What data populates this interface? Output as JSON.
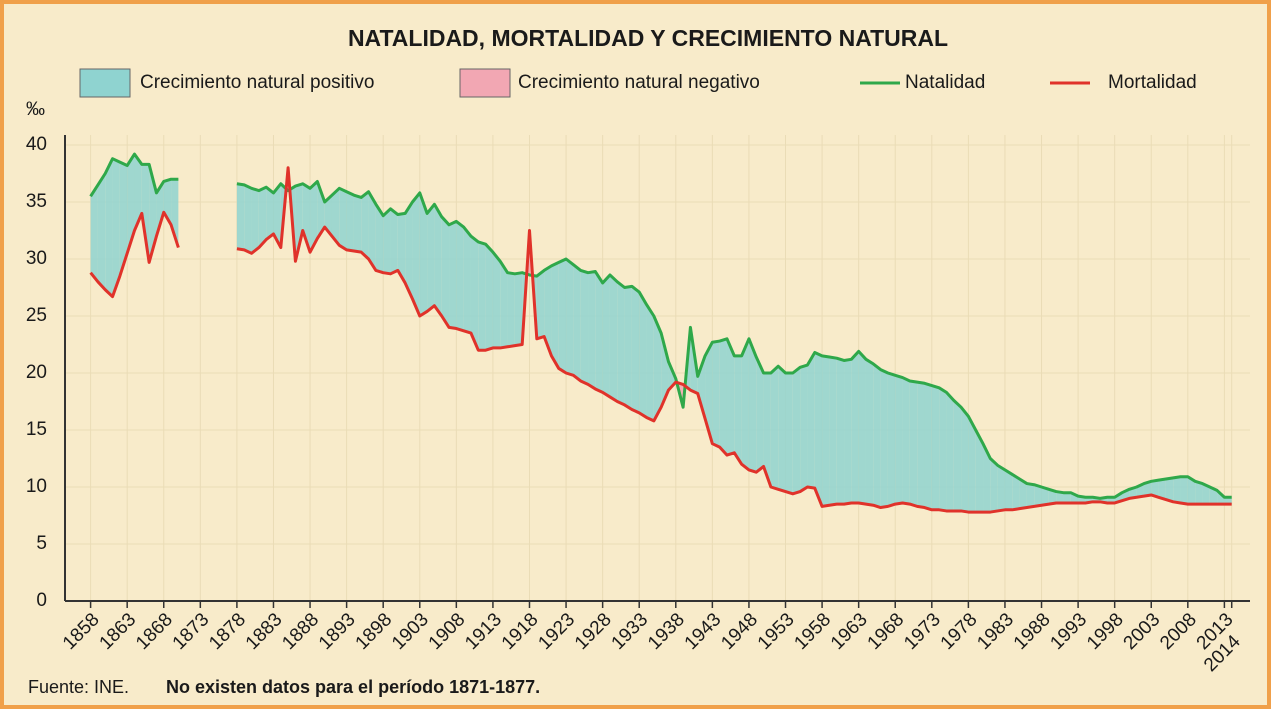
{
  "chart_data": {
    "type": "line",
    "title": "NATALIDAD, MORTALIDAD Y CRECIMIENTO NATURAL",
    "y_label": "‰",
    "source": "Fuente: INE.",
    "note": "No existen datos para el período 1871-1877.",
    "fills": [
      {
        "name": "Crecimiento natural positivo",
        "color": "#8fd3d0"
      },
      {
        "name": "Crecimiento natural negativo",
        "color": "#f2a7b3"
      }
    ],
    "x": [
      1858,
      1859,
      1860,
      1861,
      1862,
      1863,
      1864,
      1865,
      1866,
      1867,
      1868,
      1869,
      1870,
      1871,
      1872,
      1873,
      1874,
      1875,
      1876,
      1877,
      1878,
      1879,
      1880,
      1881,
      1882,
      1883,
      1884,
      1885,
      1886,
      1887,
      1888,
      1889,
      1890,
      1891,
      1892,
      1893,
      1894,
      1895,
      1896,
      1897,
      1898,
      1899,
      1900,
      1901,
      1902,
      1903,
      1904,
      1905,
      1906,
      1907,
      1908,
      1909,
      1910,
      1911,
      1912,
      1913,
      1914,
      1915,
      1916,
      1917,
      1918,
      1919,
      1920,
      1921,
      1922,
      1923,
      1924,
      1925,
      1926,
      1927,
      1928,
      1929,
      1930,
      1931,
      1932,
      1933,
      1934,
      1935,
      1936,
      1937,
      1938,
      1939,
      1940,
      1941,
      1942,
      1943,
      1944,
      1945,
      1946,
      1947,
      1948,
      1949,
      1950,
      1951,
      1952,
      1953,
      1954,
      1955,
      1956,
      1957,
      1958,
      1959,
      1960,
      1961,
      1962,
      1963,
      1964,
      1965,
      1966,
      1967,
      1968,
      1969,
      1970,
      1971,
      1972,
      1973,
      1974,
      1975,
      1976,
      1977,
      1978,
      1979,
      1980,
      1981,
      1982,
      1983,
      1984,
      1985,
      1986,
      1987,
      1988,
      1989,
      1990,
      1991,
      1992,
      1993,
      1994,
      1995,
      1996,
      1997,
      1998,
      1999,
      2000,
      2001,
      2002,
      2003,
      2004,
      2005,
      2006,
      2007,
      2008,
      2009,
      2010,
      2011,
      2012,
      2013,
      2014
    ],
    "series": [
      {
        "name": "Natalidad",
        "color": "#2fa84a",
        "values": [
          35.5,
          36.5,
          37.5,
          38.8,
          38.5,
          38.2,
          39.2,
          38.3,
          38.3,
          35.8,
          36.8,
          37.0,
          37.0,
          null,
          null,
          null,
          null,
          null,
          null,
          null,
          36.6,
          36.5,
          36.2,
          36.0,
          36.3,
          35.8,
          36.6,
          36.0,
          36.4,
          36.6,
          36.2,
          36.8,
          35.0,
          35.6,
          36.2,
          35.9,
          35.6,
          35.4,
          35.9,
          34.8,
          33.8,
          34.4,
          33.9,
          34.0,
          35.0,
          35.8,
          34.0,
          34.8,
          33.7,
          33.0,
          33.3,
          32.8,
          32.0,
          31.5,
          31.3,
          30.6,
          29.8,
          28.8,
          28.7,
          28.8,
          28.6,
          28.5,
          29.0,
          29.4,
          29.7,
          30.0,
          29.5,
          29.0,
          28.8,
          28.9,
          27.9,
          28.6,
          28.0,
          27.5,
          27.6,
          27.1,
          26.0,
          25.0,
          23.5,
          21.0,
          19.5,
          17.0,
          24.0,
          19.7,
          21.5,
          22.7,
          22.8,
          23.0,
          21.5,
          21.5,
          23.0,
          21.4,
          20.0,
          20.0,
          20.6,
          20.0,
          20.0,
          20.5,
          20.7,
          21.8,
          21.5,
          21.4,
          21.3,
          21.1,
          21.2,
          21.9,
          21.2,
          20.8,
          20.3,
          20.0,
          19.8,
          19.6,
          19.3,
          19.2,
          19.1,
          18.9,
          18.7,
          18.3,
          17.6,
          17.0,
          16.2,
          15.0,
          13.8,
          12.5,
          11.9,
          11.5,
          11.1,
          10.7,
          10.3,
          10.2,
          10.0,
          9.8,
          9.6,
          9.5,
          9.5,
          9.2,
          9.1,
          9.1,
          9.0,
          9.1,
          9.1,
          9.5,
          9.8,
          10.0,
          10.3,
          10.5,
          10.6,
          10.7,
          10.8,
          10.9,
          10.9,
          10.5,
          10.3,
          10.0,
          9.7,
          9.1,
          9.1
        ]
      },
      {
        "name": "Mortalidad",
        "color": "#e0322a",
        "values": [
          28.8,
          28.0,
          27.3,
          26.7,
          28.5,
          30.5,
          32.5,
          34.0,
          29.7,
          32.0,
          34.1,
          33.0,
          31.0,
          null,
          null,
          null,
          null,
          null,
          null,
          null,
          30.9,
          30.8,
          30.5,
          31.0,
          31.7,
          32.2,
          31.0,
          38.0,
          29.8,
          32.5,
          30.6,
          31.8,
          32.8,
          32.0,
          31.2,
          30.8,
          30.7,
          30.6,
          30.0,
          29.0,
          28.8,
          28.7,
          29.0,
          27.9,
          26.5,
          25.0,
          25.4,
          25.9,
          25.0,
          24.0,
          23.9,
          23.7,
          23.5,
          22.0,
          22.0,
          22.2,
          22.2,
          22.3,
          22.4,
          22.5,
          32.5,
          23.0,
          23.2,
          21.5,
          20.4,
          20.0,
          19.8,
          19.3,
          19.0,
          18.6,
          18.3,
          17.9,
          17.5,
          17.2,
          16.8,
          16.5,
          16.1,
          15.8,
          17.0,
          18.5,
          19.2,
          19.0,
          18.5,
          18.2,
          16.0,
          13.8,
          13.5,
          12.8,
          13.0,
          12.0,
          11.5,
          11.3,
          11.8,
          10.0,
          9.8,
          9.6,
          9.4,
          9.6,
          10.0,
          9.9,
          8.3,
          8.4,
          8.5,
          8.5,
          8.6,
          8.6,
          8.5,
          8.4,
          8.2,
          8.3,
          8.5,
          8.6,
          8.5,
          8.3,
          8.2,
          8.0,
          8.0,
          7.9,
          7.9,
          7.9,
          7.8,
          7.8,
          7.8,
          7.8,
          7.9,
          8.0,
          8.0,
          8.1,
          8.2,
          8.3,
          8.4,
          8.5,
          8.6,
          8.6,
          8.6,
          8.6,
          8.6,
          8.7,
          8.7,
          8.6,
          8.6,
          8.8,
          9.0,
          9.1,
          9.2,
          9.3,
          9.1,
          8.9,
          8.7,
          8.6,
          8.5,
          8.5,
          8.5,
          8.5,
          8.5,
          8.5,
          8.5
        ]
      }
    ],
    "xlim": [
      1854.5,
      2016.5
    ],
    "xticks": [
      1858,
      1863,
      1868,
      1873,
      1878,
      1883,
      1888,
      1893,
      1898,
      1903,
      1908,
      1913,
      1918,
      1923,
      1928,
      1933,
      1938,
      1943,
      1948,
      1953,
      1958,
      1963,
      1968,
      1973,
      1978,
      1983,
      1988,
      1993,
      1998,
      2003,
      2008,
      2013,
      2014
    ],
    "ylim": [
      0,
      40
    ],
    "yticks": [
      0,
      5,
      10,
      15,
      20,
      25,
      30,
      35,
      40
    ],
    "grid": true
  }
}
